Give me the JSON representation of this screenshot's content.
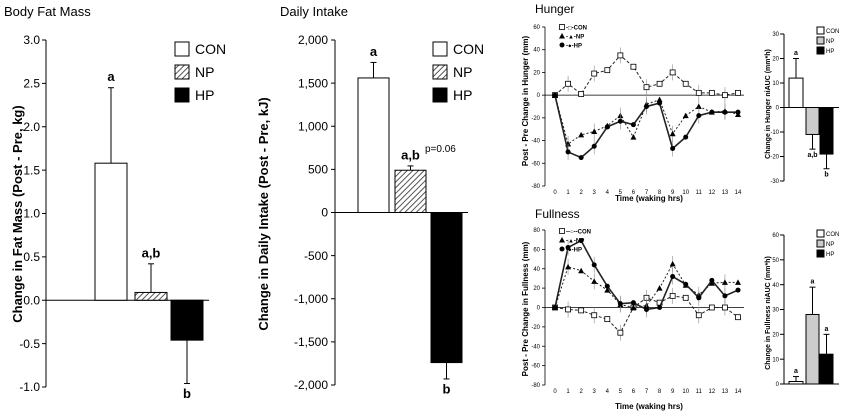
{
  "chart_data": [
    {
      "id": "fat",
      "type": "bar",
      "title": "Body Fat Mass",
      "ylabel": "Change in Fat Mass (Post - Pre, kg)",
      "xlabel": "",
      "ylim": [
        -1.0,
        3.0
      ],
      "yticks": [
        "3.0",
        "2.5",
        "2.0",
        "1.5",
        "1.0",
        "0.5",
        "0.0",
        "-0.5",
        "-1.0"
      ],
      "categories": [
        "CON",
        "NP",
        "HP"
      ],
      "values": [
        1.58,
        0.09,
        -0.46
      ],
      "errors": [
        0.87,
        0.33,
        0.5
      ],
      "sig_labels": [
        "a",
        "a,b",
        "b"
      ],
      "legend": [
        "CON",
        "NP",
        "HP"
      ]
    },
    {
      "id": "intake",
      "type": "bar",
      "title": "Daily Intake",
      "ylabel": "Change in Daily Intake (Post - Pre, kJ)",
      "xlabel": "",
      "ylim": [
        -2000,
        2000
      ],
      "yticks": [
        "2,000",
        "1,500",
        "1,000",
        "500",
        "0",
        "-500",
        "-1,000",
        "-1,500",
        "-2,000"
      ],
      "categories": [
        "CON",
        "NP",
        "HP"
      ],
      "values": [
        1560,
        490,
        -1740
      ],
      "errors": [
        180,
        50,
        190
      ],
      "sig_labels": [
        "a",
        "a,b",
        "b"
      ],
      "annotation": "p=0.06",
      "legend": [
        "CON",
        "NP",
        "HP"
      ]
    },
    {
      "id": "hunger",
      "type": "line",
      "title": "Hunger",
      "ylabel": "Post - Pre Change in Hunger (mm)",
      "xlabel": "Time (waking hrs)",
      "ylim": [
        -80,
        60
      ],
      "yticks": [
        "60",
        "40",
        "20",
        "0",
        "-20",
        "-40",
        "-60",
        "-80"
      ],
      "xticks": [
        "0",
        "1",
        "2",
        "3",
        "4",
        "5",
        "6",
        "7",
        "8",
        "9",
        "10",
        "11",
        "12",
        "13",
        "14"
      ],
      "x": [
        0,
        1,
        2,
        3,
        4,
        5,
        6,
        7,
        8,
        9,
        10,
        11,
        12,
        13,
        14
      ],
      "series": [
        {
          "name": "-□-CON",
          "values": [
            0,
            10,
            1,
            19,
            22,
            35,
            25,
            7,
            10,
            20,
            10,
            2,
            2,
            0,
            2
          ]
        },
        {
          "name": "-▲-NP",
          "values": [
            0,
            -43,
            -35,
            -32,
            -27,
            -18,
            -37,
            -8,
            -4,
            -34,
            -18,
            -10,
            -15,
            -14,
            -17
          ]
        },
        {
          "name": "-●-HP",
          "values": [
            0,
            -50,
            -55,
            -45,
            -28,
            -23,
            -26,
            -10,
            -7,
            -47,
            -37,
            -18,
            -15,
            -15,
            -15
          ]
        }
      ],
      "legend": [
        "-□-CON",
        "-▲-NP",
        "-●-HP"
      ]
    },
    {
      "id": "hunger_auc",
      "type": "bar",
      "title": "",
      "ylabel": "Change in Hunger niAUC (mm*h)",
      "xlabel": "",
      "ylim": [
        -30,
        30
      ],
      "yticks": [
        "30",
        "20",
        "10",
        "0",
        "-10",
        "-20",
        "-30"
      ],
      "categories": [
        "CON",
        "NP",
        "HP"
      ],
      "values": [
        12,
        -11,
        -19
      ],
      "errors": [
        8,
        6,
        6
      ],
      "sig_labels": [
        "a",
        "a,b",
        "b"
      ],
      "legend": [
        "CON",
        "NP",
        "HP"
      ]
    },
    {
      "id": "fullness",
      "type": "line",
      "title": "Fullness",
      "ylabel": "Post - Pre Change in Fullness (mm)",
      "xlabel": "Time (waking hrs)",
      "ylim": [
        -80,
        80
      ],
      "yticks": [
        "80",
        "60",
        "40",
        "20",
        "0",
        "-20",
        "-40",
        "-60",
        "-80"
      ],
      "xticks": [
        "0",
        "1",
        "2",
        "3",
        "4",
        "5",
        "6",
        "7",
        "8",
        "9",
        "10",
        "11",
        "12",
        "13",
        "14"
      ],
      "x": [
        0,
        1,
        2,
        3,
        4,
        5,
        6,
        7,
        8,
        9,
        10,
        11,
        12,
        13,
        14
      ],
      "series": [
        {
          "name": "--○--CON",
          "values": [
            0,
            -2,
            -3,
            -8,
            -12,
            -26,
            0,
            10,
            5,
            12,
            10,
            -8,
            0,
            0,
            -10
          ]
        },
        {
          "name": "-▲-NP",
          "values": [
            0,
            42,
            38,
            27,
            18,
            3,
            0,
            2,
            20,
            45,
            23,
            13,
            25,
            26,
            26
          ]
        },
        {
          "name": "-●-HP",
          "values": [
            0,
            62,
            69,
            44,
            22,
            4,
            5,
            -2,
            0,
            32,
            24,
            10,
            28,
            12,
            18
          ]
        }
      ],
      "legend": [
        "--○--CON",
        "-▲-NP",
        "-●-HP"
      ]
    },
    {
      "id": "fullness_auc",
      "type": "bar",
      "title": "",
      "ylabel": "Change in Fullness niAUC (mm*h)",
      "xlabel": "",
      "ylim": [
        0,
        60
      ],
      "yticks": [
        "60",
        "50",
        "40",
        "30",
        "20",
        "10",
        "0"
      ],
      "categories": [
        "CON",
        "NP",
        "HP"
      ],
      "values": [
        1,
        28,
        12
      ],
      "errors": [
        2,
        11,
        8
      ],
      "sig_labels": [
        "a",
        "a",
        "a"
      ],
      "legend": [
        "CON",
        "NP",
        "HP"
      ]
    }
  ],
  "colors": {
    "con": "#ffffff",
    "np": "#cccccc",
    "hp": "#000000",
    "axis": "#000000",
    "line": "#222222"
  }
}
